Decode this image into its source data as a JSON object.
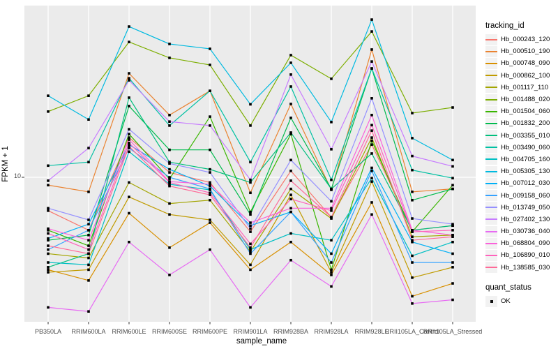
{
  "figure": {
    "background": "#FFFFFF",
    "panel_background": "#EBEBEB",
    "gridline_color": "#FFFFFF",
    "axis_text_color": "#4D4D4D",
    "point_color": "#000000"
  },
  "axes": {
    "y_tick_label": "10"
  },
  "legend": {
    "tracking_title": "tracking_id",
    "quant_title": "quant_status",
    "quant_ok_label": "OK"
  },
  "chart_data": {
    "type": "line",
    "title": "",
    "xlabel": "sample_name",
    "ylabel": "FPKM + 1",
    "y_scale": "log10",
    "y_tick_values": [
      10
    ],
    "ylim": [
      1.8,
      80
    ],
    "grid": "major",
    "legend_position": "right",
    "point_marker": "black-square",
    "categories": [
      "PB350LA",
      "RRIM600LA",
      "RRIM600LE",
      "RRIM600SE",
      "RRIM600PE",
      "RRIM901LA",
      "RRIM928BA",
      "RRIM928LA",
      "RRIM928LE",
      "RRII105LA_Control",
      "RRII105LA_Stressed"
    ],
    "series": [
      {
        "name": "Hb_000243_120",
        "color": "#F8766D",
        "values": [
          6.7,
          5.3,
          16.1,
          10.6,
          9.4,
          5.2,
          10.8,
          6.2,
          14.8,
          5.3,
          5.6
        ]
      },
      {
        "name": "Hb_000510_190",
        "color": "#EA8331",
        "values": [
          9.1,
          8.4,
          34.8,
          21.1,
          28.2,
          8.3,
          24.1,
          8.6,
          46.3,
          8.4,
          8.7
        ]
      },
      {
        "name": "Hb_000748_090",
        "color": "#D89000",
        "values": [
          3.3,
          2.9,
          6.5,
          4.3,
          5.8,
          3.3,
          4.6,
          3.1,
          7.4,
          2.4,
          2.8
        ]
      },
      {
        "name": "Hb_000862_100",
        "color": "#C09B00",
        "values": [
          3.2,
          3.3,
          7.9,
          6.4,
          6.0,
          3.5,
          8.1,
          3.2,
          9.5,
          3.0,
          3.4
        ]
      },
      {
        "name": "Hb_001117_110",
        "color": "#A3A500",
        "values": [
          4.0,
          3.8,
          9.4,
          7.3,
          7.6,
          4.1,
          8.7,
          6.1,
          16.1,
          4.9,
          5.0
        ]
      },
      {
        "name": "Hb_001488_020",
        "color": "#7CAE00",
        "values": [
          22.0,
          26.6,
          50.7,
          41.9,
          38.5,
          18.6,
          43.3,
          32.6,
          57.5,
          21.6,
          23.1
        ]
      },
      {
        "name": "Hb_001504_060",
        "color": "#39B600",
        "values": [
          5.3,
          4.4,
          16.8,
          9.8,
          20.7,
          6.6,
          16.8,
          3.3,
          15.5,
          5.2,
          9.1
        ]
      },
      {
        "name": "Hb_001832_200",
        "color": "#00BB4E",
        "values": [
          4.7,
          5.0,
          23.5,
          13.9,
          13.9,
          6.4,
          20.4,
          8.7,
          36.9,
          7.6,
          8.7
        ]
      },
      {
        "name": "Hb_003355_010",
        "color": "#00BF7D",
        "values": [
          3.4,
          4.0,
          26.0,
          12.0,
          11.0,
          9.4,
          17.1,
          8.7,
          13.3,
          5.3,
          5.6
        ]
      },
      {
        "name": "Hb_003490_060",
        "color": "#00C1A3",
        "values": [
          11.5,
          12.0,
          32.8,
          18.6,
          28.2,
          12.0,
          29.7,
          9.7,
          36.9,
          10.9,
          9.9
        ]
      },
      {
        "name": "Hb_004705_160",
        "color": "#00BFC4",
        "values": [
          3.6,
          3.5,
          13.6,
          9.2,
          8.6,
          4.2,
          5.1,
          4.7,
          9.9,
          3.9,
          4.6
        ]
      },
      {
        "name": "Hb_005305_130",
        "color": "#00BAE0",
        "values": [
          26.6,
          20.0,
          61.0,
          49.5,
          46.7,
          24.0,
          39.5,
          19.4,
          66.3,
          16.0,
          12.3
        ]
      },
      {
        "name": "Hb_007012_030",
        "color": "#00B0F6",
        "values": [
          4.8,
          5.7,
          14.8,
          11.0,
          9.0,
          5.6,
          6.6,
          4.0,
          11.2,
          4.6,
          4.0
        ]
      },
      {
        "name": "Hb_009158_060",
        "color": "#35A2FF",
        "values": [
          4.2,
          5.3,
          14.2,
          10.0,
          8.7,
          4.0,
          6.6,
          3.6,
          10.8,
          3.6,
          3.6
        ]
      },
      {
        "name": "Hb_013749_050",
        "color": "#9590FF",
        "values": [
          6.9,
          6.0,
          17.8,
          11.8,
          10.6,
          5.4,
          12.3,
          7.5,
          25.8,
          6.1,
          5.7
        ]
      },
      {
        "name": "Hb_027402_130",
        "color": "#C77CFF",
        "values": [
          9.6,
          14.2,
          32.0,
          19.5,
          18.6,
          9.7,
          34.3,
          14.0,
          40.1,
          12.9,
          11.4
        ]
      },
      {
        "name": "Hb_030736_040",
        "color": "#E76BF3",
        "values": [
          2.1,
          2.0,
          4.6,
          3.1,
          4.2,
          2.1,
          3.7,
          2.7,
          6.4,
          2.2,
          2.3
        ]
      },
      {
        "name": "Hb_068804_090",
        "color": "#FA62DB",
        "values": [
          5.4,
          4.7,
          15.7,
          9.5,
          9.2,
          5.8,
          6.9,
          6.9,
          21.1,
          5.3,
          5.0
        ]
      },
      {
        "name": "Hb_106890_010",
        "color": "#FF62BC",
        "values": [
          5.1,
          4.2,
          15.1,
          9.4,
          8.3,
          4.5,
          7.7,
          6.7,
          18.7,
          5.2,
          5.3
        ]
      },
      {
        "name": "Hb_138585_030",
        "color": "#FF6A98",
        "values": [
          4.4,
          4.0,
          14.5,
          9.0,
          8.1,
          4.3,
          9.6,
          6.2,
          17.5,
          4.7,
          4.9
        ]
      }
    ]
  }
}
